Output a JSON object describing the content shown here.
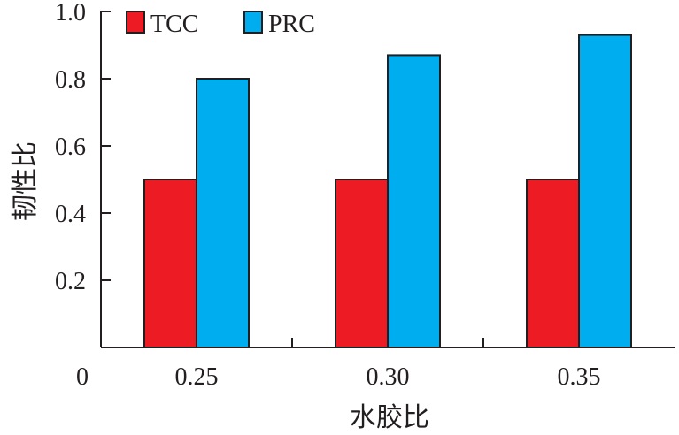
{
  "chart_data": {
    "type": "bar",
    "title": "",
    "xlabel": "水胶比",
    "ylabel": "韧性比",
    "categories": [
      "0.25",
      "0.30",
      "0.35"
    ],
    "series": [
      {
        "name": "TCC",
        "color": "#ed1c24",
        "values": [
          0.5,
          0.5,
          0.5
        ]
      },
      {
        "name": "PRC",
        "color": "#00aeef",
        "values": [
          0.8,
          0.87,
          0.93
        ]
      }
    ],
    "ylim": [
      0,
      1.0
    ],
    "yticks": [
      "0",
      "0.2",
      "0.4",
      "0.6",
      "0.8",
      "1.0"
    ],
    "grid": false,
    "legend": "top-left"
  }
}
